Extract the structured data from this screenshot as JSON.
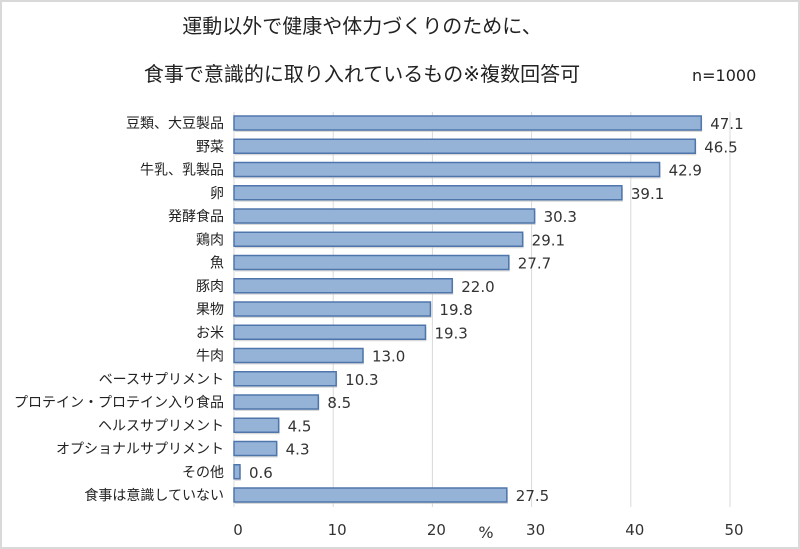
{
  "chart_data": {
    "type": "bar",
    "orientation": "horizontal",
    "title": "運動以外で健康や体力づくりのために、",
    "subtitle": "食事で意識的に取り入れているもの※複数回答可",
    "note": "n=1000",
    "xlabel": "%",
    "ylabel": "",
    "xlim": [
      0,
      50
    ],
    "xticks": [
      0,
      10,
      20,
      30,
      40,
      50
    ],
    "grid": true,
    "categories": [
      "豆類、大豆製品",
      "野菜",
      "牛乳、乳製品",
      "卵",
      "発酵食品",
      "鶏肉",
      "魚",
      "豚肉",
      "果物",
      "お米",
      "牛肉",
      "ベースサプリメント",
      "プロテイン・プロテイン入り食品",
      "ヘルスサプリメント",
      "オプショナルサプリメント",
      "その他",
      "食事は意識していない"
    ],
    "values": [
      47.1,
      46.5,
      42.9,
      39.1,
      30.3,
      29.1,
      27.7,
      22.0,
      19.8,
      19.3,
      13.0,
      10.3,
      8.5,
      4.5,
      4.3,
      0.6,
      27.5
    ],
    "value_labels": [
      "47.1",
      "46.5",
      "42.9",
      "39.1",
      "30.3",
      "29.1",
      "27.7",
      "22.0",
      "19.8",
      "19.3",
      "13.0",
      "10.3",
      "8.5",
      "4.5",
      "4.3",
      "0.6",
      "27.5"
    ],
    "colors": {
      "bar_fill": "#95b3d7",
      "bar_stroke": "#4f76ac",
      "grid": "#d9d9d9"
    }
  }
}
